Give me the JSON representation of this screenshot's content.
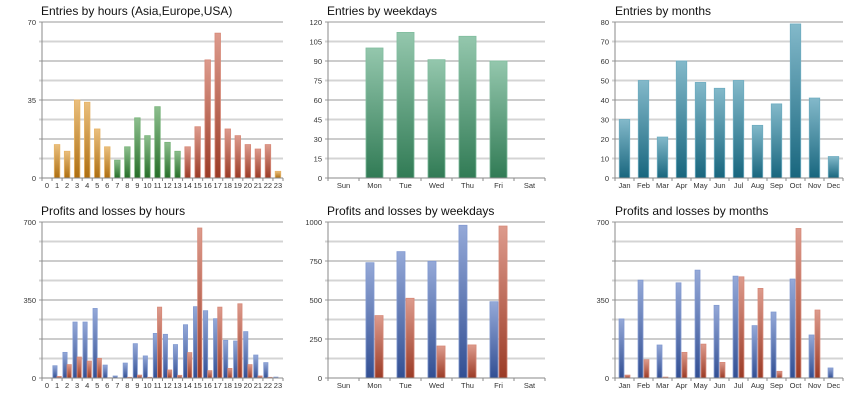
{
  "chart_data": [
    {
      "type": "bar",
      "title": "Entries by hours (Asia,Europe,USA)",
      "categories": [
        "0",
        "1",
        "2",
        "3",
        "4",
        "5",
        "6",
        "7",
        "8",
        "9",
        "10",
        "11",
        "12",
        "13",
        "14",
        "15",
        "16",
        "17",
        "18",
        "19",
        "20",
        "21",
        "22",
        "23"
      ],
      "series": [
        {
          "values": [
            0,
            15,
            12,
            35,
            34,
            22,
            14,
            8,
            14,
            27,
            19,
            32,
            16,
            12,
            14,
            23,
            53,
            65,
            22,
            19,
            15,
            13,
            15,
            3
          ]
        }
      ],
      "category_colors": [
        "#d88a14",
        "#d88a14",
        "#d88a14",
        "#d88a14",
        "#d88a14",
        "#d88a14",
        "#d88a14",
        "#2f8a32",
        "#2f8a32",
        "#2f8a32",
        "#2f8a32",
        "#2f8a32",
        "#2f8a32",
        "#2f8a32",
        "#c24a30",
        "#c24a30",
        "#c24a30",
        "#c24a30",
        "#c24a30",
        "#c24a30",
        "#c24a30",
        "#c24a30",
        "#c24a30",
        "#d88a14"
      ],
      "ylim": [
        0,
        70
      ],
      "yticks": [
        0,
        35,
        70
      ],
      "grid": true
    },
    {
      "type": "bar",
      "title": "Entries by weekdays",
      "categories": [
        "Sun",
        "Mon",
        "Tue",
        "Wed",
        "Thu",
        "Fri",
        "Sat"
      ],
      "series": [
        {
          "values": [
            0,
            100,
            112,
            91,
            109,
            90,
            0
          ],
          "color": "#3d9a6a"
        }
      ],
      "ylim": [
        0,
        120
      ],
      "yticks": [
        0,
        15,
        30,
        45,
        60,
        75,
        90,
        105,
        120
      ],
      "grid": true
    },
    {
      "type": "bar",
      "title": "Entries by months",
      "categories": [
        "Jan",
        "Feb",
        "Mar",
        "Apr",
        "May",
        "Jun",
        "Jul",
        "Aug",
        "Sep",
        "Oct",
        "Nov",
        "Dec"
      ],
      "series": [
        {
          "values": [
            30,
            50,
            21,
            60,
            49,
            46,
            50,
            27,
            38,
            79,
            41,
            11
          ],
          "color": "#1e7f9e"
        }
      ],
      "ylim": [
        0,
        80
      ],
      "yticks": [
        0,
        10,
        20,
        30,
        40,
        50,
        60,
        70,
        80
      ],
      "grid": true
    },
    {
      "type": "bar",
      "title": "Profits and losses by hours",
      "categories": [
        "0",
        "1",
        "2",
        "3",
        "4",
        "5",
        "6",
        "7",
        "8",
        "9",
        "10",
        "11",
        "12",
        "13",
        "14",
        "15",
        "16",
        "17",
        "18",
        "19",
        "20",
        "21",
        "22",
        "23"
      ],
      "series": [
        {
          "values": [
            0,
            55,
            115,
            251,
            251,
            312,
            58,
            9,
            67,
            154,
            99,
            200,
            196,
            150,
            239,
            320,
            302,
            266,
            169,
            166,
            208,
            103,
            69,
            4
          ],
          "color": "#3f63b8"
        },
        {
          "values": [
            0,
            7,
            60,
            94,
            76,
            88,
            1,
            0,
            3,
            13,
            3,
            318,
            36,
            12,
            114,
            673,
            33,
            318,
            43,
            333,
            60,
            9,
            3,
            0
          ],
          "color": "#c24a30"
        }
      ],
      "ylim": [
        0,
        700
      ],
      "yticks": [
        0,
        350,
        700
      ],
      "grid": true
    },
    {
      "type": "bar",
      "title": "Profits and losses by weekdays",
      "categories": [
        "Sun",
        "Mon",
        "Tue",
        "Wed",
        "Thu",
        "Fri",
        "Sat"
      ],
      "series": [
        {
          "values": [
            0,
            739,
            810,
            748,
            979,
            489,
            0
          ],
          "color": "#3f63b8"
        },
        {
          "values": [
            0,
            400,
            511,
            205,
            212,
            974,
            0
          ],
          "color": "#c24a30"
        }
      ],
      "ylim": [
        0,
        1000
      ],
      "yticks": [
        0,
        250,
        500,
        750,
        1000
      ],
      "grid": true
    },
    {
      "type": "bar",
      "title": "Profits and losses by months",
      "categories": [
        "Jan",
        "Feb",
        "Mar",
        "Apr",
        "May",
        "Jun",
        "Jul",
        "Aug",
        "Sep",
        "Oct",
        "Nov",
        "Dec"
      ],
      "series": [
        {
          "values": [
            265,
            439,
            148,
            427,
            484,
            326,
            457,
            235,
            296,
            444,
            193,
            45
          ],
          "color": "#3f63b8"
        },
        {
          "values": [
            13,
            82,
            4,
            115,
            152,
            70,
            454,
            402,
            30,
            671,
            305,
            0
          ],
          "color": "#c24a30"
        }
      ],
      "ylim": [
        0,
        700
      ],
      "yticks": [
        0,
        350,
        700
      ],
      "grid": true
    }
  ]
}
